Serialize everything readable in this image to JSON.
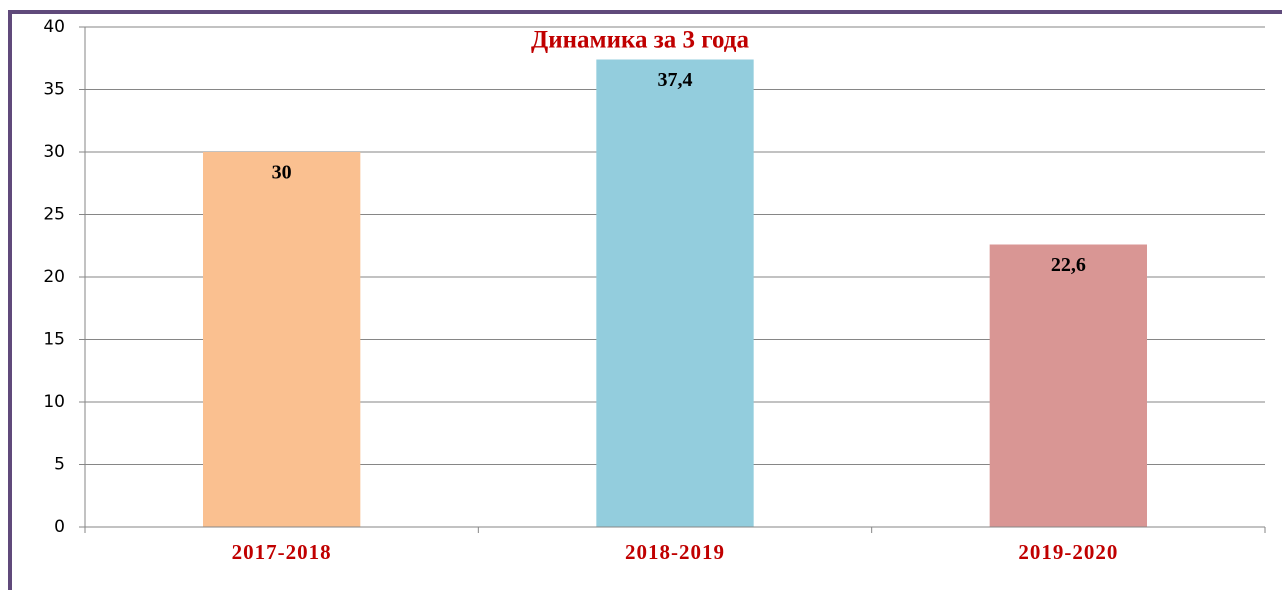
{
  "chart_data": {
    "type": "bar",
    "title": "Динамика за 3 года",
    "categories": [
      "2017-2018",
      "2018-2019",
      "2019-2020"
    ],
    "values": [
      30,
      37.4,
      22.6
    ],
    "value_labels": [
      "30",
      "37,4",
      "22,6"
    ],
    "colors": [
      "#fac090",
      "#93cddd",
      "#d99694"
    ],
    "ylim": [
      0,
      40
    ],
    "yticks": [
      0,
      5,
      10,
      15,
      20,
      25,
      30,
      35,
      40
    ],
    "grid": true
  }
}
